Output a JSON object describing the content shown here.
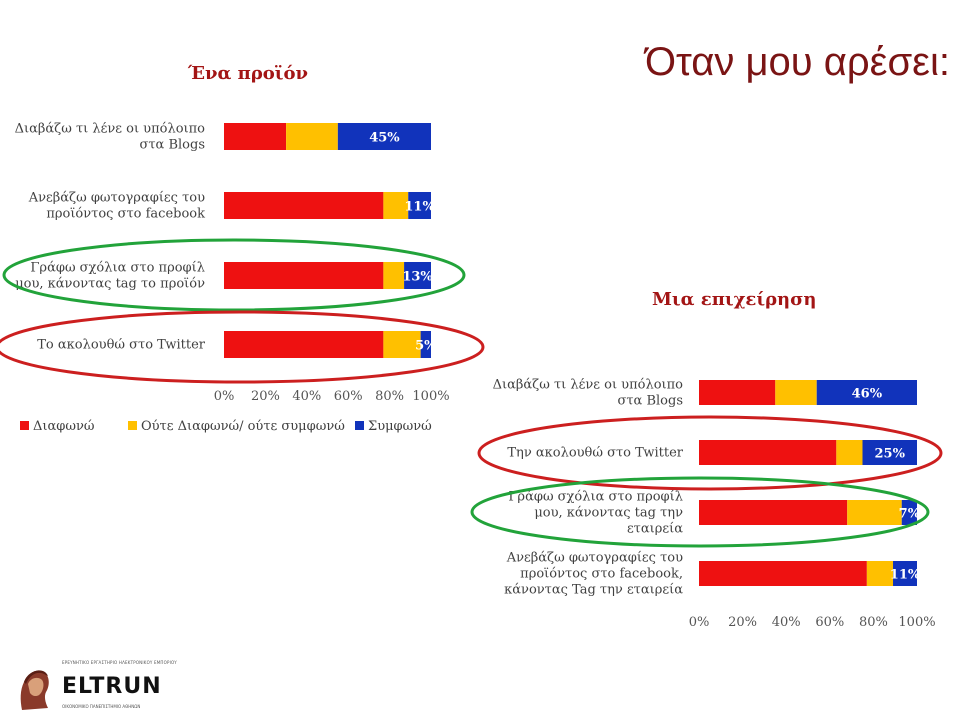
{
  "slide_title": "Όταν μου αρέσει:",
  "colors": {
    "disagree": "#ee1111",
    "neutral": "#ffc000",
    "agree": "#1133bb",
    "ellipse_green": "#22a33a",
    "ellipse_red": "#cc1f1f"
  },
  "legend": {
    "disagree": "Διαφωνώ",
    "neutral": "Ούτε Διαφωνώ/ ούτε συμφωνώ",
    "agree": "Συμφωνώ"
  },
  "logo": {
    "name": "ELTRUN",
    "tagline_top": "ΕΡΕΥΝΗΤΙΚΟ ΕΡΓΑΣΤΗΡΙΟ ΗΛΕΚΤΡΟΝΙΚΟΥ ΕΜΠΟΡΙΟΥ",
    "tagline_bottom": "ΟΙΚΟΝΟΜΙΚΟ ΠΑΝΕΠΙΣΤΗΜΙΟ ΑΘΗΝΩΝ"
  },
  "chart_data": [
    {
      "type": "bar",
      "stacked": true,
      "orientation": "horizontal",
      "title": "Ένα προϊόν",
      "xlim": [
        0,
        100
      ],
      "x_ticks": [
        "0%",
        "20%",
        "40%",
        "60%",
        "80%",
        "100%"
      ],
      "categories": [
        [
          "Διαβάζω τι λένε οι υπόλοιπο",
          "στα Blogs"
        ],
        [
          "Ανεβάζω φωτογραφίες του",
          "προϊόντος στο facebook"
        ],
        [
          "Γράφω σχόλια στο προφίλ",
          "μου, κάνοντας tag το προϊόν"
        ],
        [
          "Το ακολουθώ στο Twitter"
        ]
      ],
      "series": [
        {
          "name": "Διαφωνώ",
          "values": [
            30,
            77,
            77,
            77
          ]
        },
        {
          "name": "Ούτε Διαφωνώ/ ούτε συμφωνώ",
          "values": [
            25,
            12,
            10,
            18
          ]
        },
        {
          "name": "Συμφωνώ",
          "values": [
            45,
            11,
            13,
            5
          ]
        }
      ],
      "data_labels": [
        "45%",
        "11%",
        "13%",
        "5%"
      ],
      "legend": "bottom",
      "highlight": {
        "green": 2,
        "red": 3
      }
    },
    {
      "type": "bar",
      "stacked": true,
      "orientation": "horizontal",
      "title": "Μια επιχείρηση",
      "xlim": [
        0,
        100
      ],
      "x_ticks": [
        "0%",
        "20%",
        "40%",
        "60%",
        "80%",
        "100%"
      ],
      "categories": [
        [
          "Διαβάζω τι λένε οι υπόλοιπο",
          "στα Blogs"
        ],
        [
          "Την ακολουθώ στο Twitter"
        ],
        [
          "Γράφω σχόλια στο προφίλ",
          "μου, κάνοντας tag την",
          "εταιρεία"
        ],
        [
          "Ανεβάζω φωτογραφίες του",
          "προϊόντος στο facebook,",
          "κάνοντας Tag την εταιρεία"
        ]
      ],
      "series": [
        {
          "name": "Διαφωνώ",
          "values": [
            35,
            63,
            68,
            77
          ]
        },
        {
          "name": "Ούτε Διαφωνώ/ ούτε συμφωνώ",
          "values": [
            19,
            12,
            25,
            12
          ]
        },
        {
          "name": "Συμφωνώ",
          "values": [
            46,
            25,
            7,
            11
          ]
        }
      ],
      "data_labels": [
        "46%",
        "25%",
        "7%",
        "11%"
      ],
      "highlight": {
        "red": 1,
        "green": 2
      }
    }
  ]
}
